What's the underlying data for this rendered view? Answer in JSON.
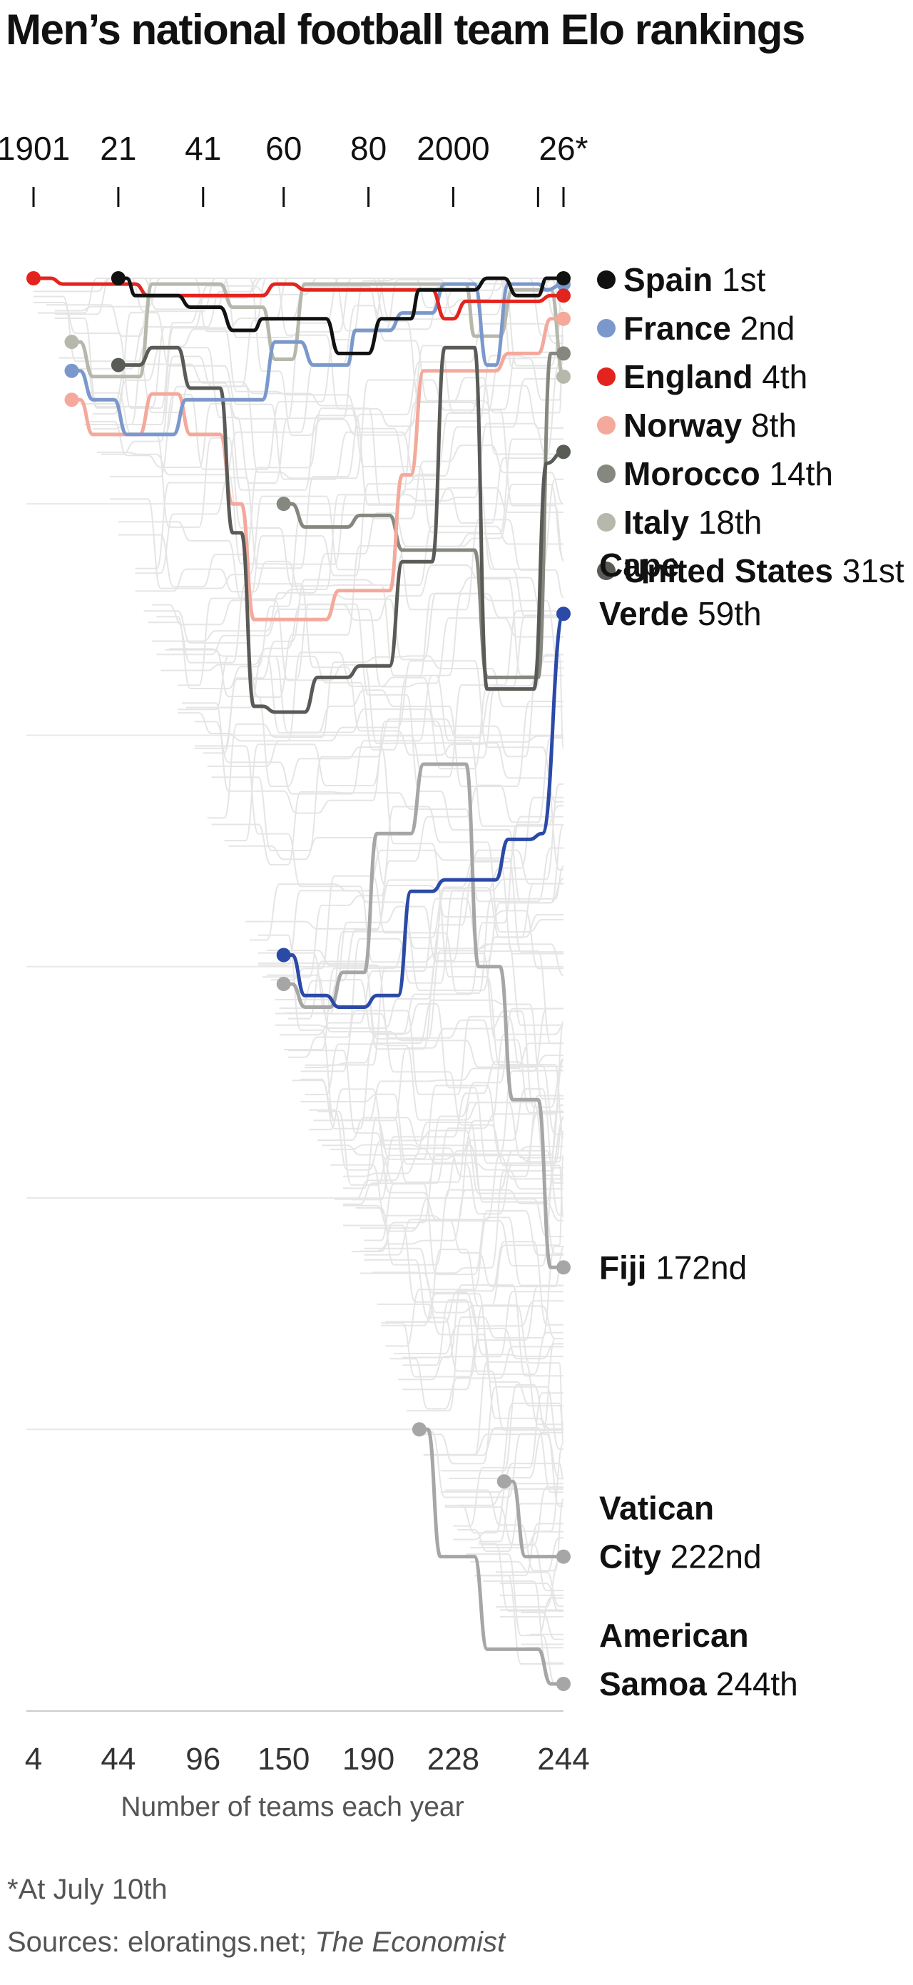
{
  "title": "Men’s national football team Elo rankings",
  "footnote": "*At July 10th",
  "sources": {
    "prefix": "Sources: eloratings.net; ",
    "publication": "The Economist"
  },
  "colors": {
    "Spain": "#111111",
    "France": "#7b98cc",
    "England": "#e3241e",
    "Norway": "#f4a99c",
    "Morocco": "#85887f",
    "Italy": "#b6b8ac",
    "United States": "#585b56",
    "Cape Verde": "#2b4aa7",
    "grey_highlight": "#a6a6a6",
    "background_lines": "#e5e5e5"
  },
  "chart_data": {
    "type": "line",
    "title": "Men’s national football team Elo rankings",
    "xlabel": "Number of teams each year",
    "ylabel": "",
    "y_reversed": true,
    "grid": true,
    "legend": "right",
    "top_axis": {
      "years": [
        1901,
        1921,
        1941,
        1960,
        1980,
        2000,
        2020,
        2026
      ],
      "labels": [
        "1901",
        "21",
        "41",
        "60",
        "80",
        "2000",
        "",
        "26*"
      ]
    },
    "bottom_axis": {
      "years": [
        1901,
        1921,
        1941,
        1960,
        1980,
        2000,
        2026
      ],
      "labels": [
        "4",
        "44",
        "96",
        "150",
        "190",
        "228",
        "244"
      ]
    },
    "xlim": [
      1901,
      2026
    ],
    "ylim": [
      1,
      244
    ],
    "series": [
      {
        "name": "Spain",
        "rank_label": "1st",
        "final_rank": 1,
        "x": [
          1921,
          1923,
          1925,
          1935,
          1938,
          1945,
          1948,
          1953,
          1955,
          1970,
          1973,
          1980,
          1983,
          1990,
          1992,
          2005,
          2008,
          2012,
          2015,
          2020,
          2022,
          2026
        ],
        "y": [
          1,
          1,
          4,
          4,
          6,
          6,
          10,
          10,
          8,
          8,
          14,
          14,
          8,
          8,
          3,
          3,
          1,
          1,
          4,
          4,
          1,
          1
        ]
      },
      {
        "name": "France",
        "rank_label": "2nd",
        "final_rank": 2,
        "x": [
          1910,
          1912,
          1915,
          1920,
          1923,
          1934,
          1937,
          1955,
          1958,
          1964,
          1967,
          1975,
          1977,
          1985,
          1988,
          1995,
          1998,
          2005,
          2008,
          2010,
          2013,
          2020,
          2022,
          2026
        ],
        "y": [
          17,
          17,
          22,
          22,
          28,
          28,
          22,
          22,
          12,
          12,
          16,
          16,
          10,
          10,
          7,
          7,
          2,
          2,
          16,
          16,
          2,
          2,
          3,
          2
        ]
      },
      {
        "name": "England",
        "rank_label": "4th",
        "final_rank": 4,
        "x": [
          1901,
          1905,
          1908,
          1925,
          1928,
          1955,
          1958,
          1962,
          1965,
          1995,
          1998,
          2000,
          2003,
          2020,
          2023,
          2026
        ],
        "y": [
          1,
          1,
          2,
          2,
          4,
          4,
          2,
          2,
          3,
          3,
          8,
          8,
          5,
          5,
          4,
          4
        ]
      },
      {
        "name": "Norway",
        "rank_label": "8th",
        "final_rank": 8,
        "x": [
          1910,
          1912,
          1915,
          1926,
          1929,
          1935,
          1938,
          1945,
          1948,
          1950,
          1953,
          1970,
          1973,
          1985,
          1988,
          1990,
          1993,
          2010,
          2013,
          2020,
          2023,
          2026
        ],
        "y": [
          22,
          22,
          28,
          28,
          21,
          21,
          28,
          28,
          40,
          40,
          60,
          60,
          55,
          55,
          35,
          35,
          17,
          17,
          14,
          14,
          8,
          8
        ]
      },
      {
        "name": "Morocco",
        "rank_label": "14th",
        "final_rank": 14,
        "x": [
          1960,
          1962,
          1965,
          1975,
          1978,
          1985,
          1988,
          2005,
          2008,
          2020,
          2023,
          2026
        ],
        "y": [
          40,
          40,
          44,
          44,
          42,
          42,
          48,
          48,
          70,
          70,
          14,
          14
        ]
      },
      {
        "name": "Italy",
        "rank_label": "18th",
        "final_rank": 18,
        "x": [
          1910,
          1912,
          1915,
          1926,
          1929,
          1945,
          1948,
          1955,
          1958,
          1962,
          1965,
          1980,
          1983,
          2003,
          2005,
          2011,
          2014,
          2023,
          2026
        ],
        "y": [
          12,
          12,
          18,
          18,
          2,
          2,
          6,
          6,
          15,
          15,
          2,
          2,
          2,
          2,
          11,
          11,
          3,
          3,
          18
        ]
      },
      {
        "name": "United States",
        "rank_label": "31st",
        "final_rank": 31,
        "x": [
          1921,
          1926,
          1929,
          1935,
          1938,
          1945,
          1948,
          1950,
          1953,
          1955,
          1958,
          1965,
          1968,
          1975,
          1978,
          1985,
          1988,
          1995,
          1998,
          2005,
          2008,
          2019,
          2022,
          2026
        ],
        "y": [
          16,
          16,
          13,
          13,
          20,
          20,
          45,
          45,
          75,
          75,
          76,
          76,
          70,
          70,
          68,
          68,
          50,
          50,
          13,
          13,
          72,
          72,
          33,
          31
        ]
      },
      {
        "name": "Cape Verde",
        "rank_label": "59th",
        "final_rank": 59,
        "x": [
          1960,
          1962,
          1965,
          1970,
          1973,
          1979,
          1982,
          1987,
          1990,
          1995,
          1998,
          2010,
          2013,
          2018,
          2021,
          2026
        ],
        "y": [
          118,
          118,
          125,
          125,
          127,
          127,
          125,
          125,
          107,
          107,
          105,
          105,
          98,
          98,
          97,
          59
        ]
      },
      {
        "name": "Fiji",
        "rank_label": "172nd",
        "final_rank": 172,
        "x": [
          1960,
          1962,
          1965,
          1971,
          1974,
          1979,
          1982,
          1990,
          1993,
          2003,
          2006,
          2011,
          2014,
          2020,
          2023,
          2026
        ],
        "y": [
          123,
          123,
          127,
          127,
          121,
          121,
          97,
          97,
          85,
          85,
          120,
          120,
          143,
          143,
          172,
          172
        ]
      },
      {
        "name": "Vatican City",
        "rank_label": "222nd",
        "final_rank": 222,
        "x": [
          2012,
          2014,
          2017,
          2026
        ],
        "y": [
          209,
          209,
          222,
          222
        ]
      },
      {
        "name": "American Samoa",
        "rank_label": "244th",
        "final_rank": 244,
        "x": [
          1992,
          1994,
          1997,
          2005,
          2008,
          2020,
          2023,
          2026
        ],
        "y": [
          200,
          200,
          222,
          222,
          238,
          238,
          244,
          244
        ]
      }
    ]
  }
}
